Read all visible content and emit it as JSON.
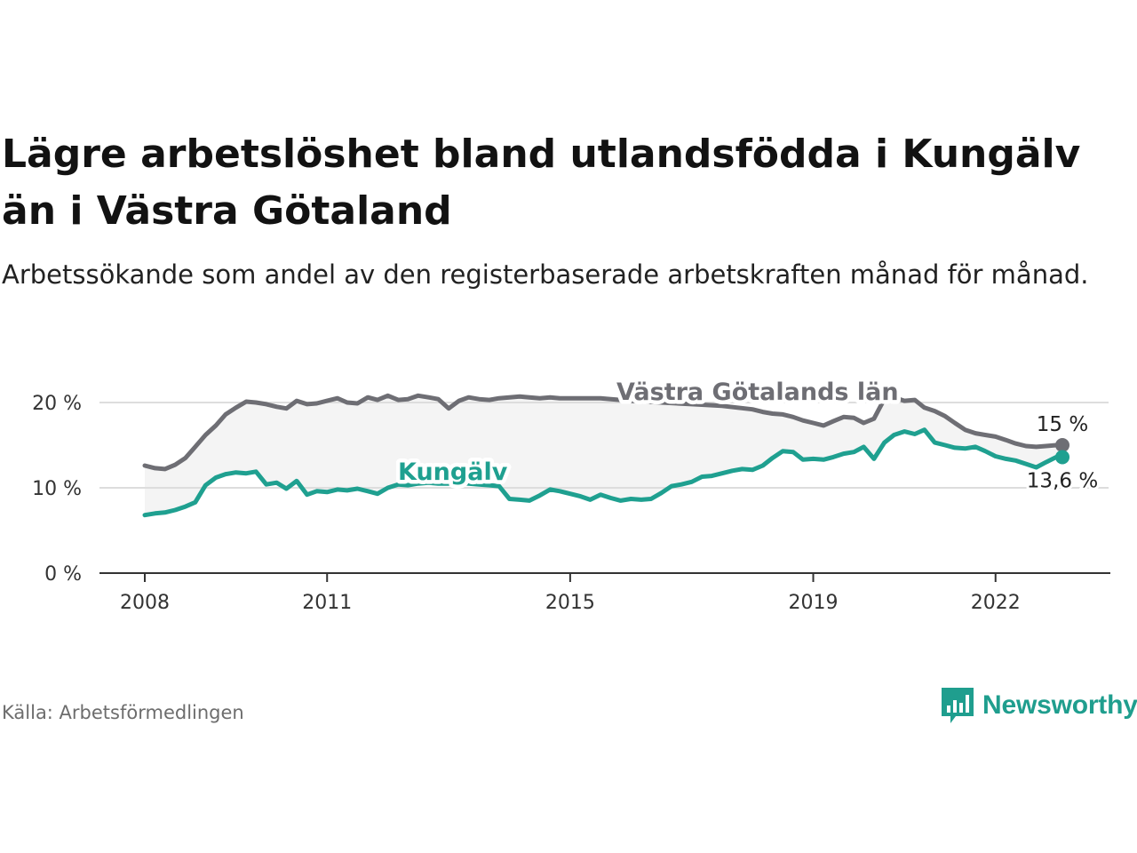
{
  "header": {
    "title": "Lägre arbetslöshet bland utlandsfödda i Kungälv än i Västra Götaland",
    "subtitle": "Arbetssökande som andel av den registerbaserade arbetskraften månad för månad."
  },
  "footer": {
    "source": "Källa: Arbetsförmedlingen",
    "brand": "Newsworthy"
  },
  "colors": {
    "regional": "#6e6e74",
    "local": "#1fa090",
    "band": "#f4f4f4"
  },
  "chart_data": {
    "type": "line",
    "title": "Lägre arbetslöshet bland utlandsfödda i Kungälv än i Västra Götaland",
    "xlabel": "",
    "ylabel": "",
    "ylim": [
      0,
      21
    ],
    "xlim": [
      2008.0,
      2023.5
    ],
    "y_ticks": [
      {
        "value": 0,
        "label": "0 %"
      },
      {
        "value": 10,
        "label": "10 %"
      },
      {
        "value": 20,
        "label": "20 %"
      }
    ],
    "x_ticks": [
      {
        "value": 2008,
        "label": "2008"
      },
      {
        "value": 2011,
        "label": "2011"
      },
      {
        "value": 2015,
        "label": "2015"
      },
      {
        "value": 2019,
        "label": "2019"
      },
      {
        "value": 2022,
        "label": "2022"
      }
    ],
    "grid": true,
    "series": [
      {
        "name": "Västra Götalands län",
        "color": "#6e6e74",
        "end_label": "15 %",
        "x": [
          2008.0,
          2008.17,
          2008.33,
          2008.5,
          2008.67,
          2008.83,
          2009.0,
          2009.17,
          2009.33,
          2009.5,
          2009.67,
          2009.83,
          2010.0,
          2010.17,
          2010.33,
          2010.5,
          2010.67,
          2010.83,
          2011.0,
          2011.17,
          2011.33,
          2011.5,
          2011.67,
          2011.83,
          2012.0,
          2012.17,
          2012.33,
          2012.5,
          2012.67,
          2012.83,
          2013.0,
          2013.17,
          2013.33,
          2013.5,
          2013.67,
          2013.83,
          2014.0,
          2014.17,
          2014.33,
          2014.5,
          2014.67,
          2014.83,
          2015.0,
          2015.17,
          2015.33,
          2015.5,
          2015.67,
          2015.83,
          2016.0,
          2016.5,
          2017.0,
          2017.5,
          2018.0,
          2018.17,
          2018.33,
          2018.5,
          2018.67,
          2018.83,
          2019.0,
          2019.17,
          2019.33,
          2019.5,
          2019.67,
          2019.83,
          2020.0,
          2020.08,
          2020.17,
          2020.33,
          2020.5,
          2020.67,
          2020.83,
          2021.0,
          2021.17,
          2021.33,
          2021.5,
          2021.67,
          2021.83,
          2022.0,
          2022.17,
          2022.33,
          2022.5,
          2022.67,
          2022.83,
          2023.0,
          2023.1
        ],
        "values": [
          12.6,
          12.3,
          12.2,
          12.7,
          13.5,
          14.8,
          16.2,
          17.3,
          18.6,
          19.4,
          20.1,
          20.0,
          19.8,
          19.5,
          19.3,
          20.2,
          19.8,
          19.9,
          20.2,
          20.5,
          20.0,
          19.9,
          20.6,
          20.3,
          20.8,
          20.3,
          20.4,
          20.8,
          20.6,
          20.4,
          19.3,
          20.2,
          20.6,
          20.4,
          20.3,
          20.5,
          20.6,
          20.7,
          20.6,
          20.5,
          20.6,
          20.5,
          20.5,
          20.5,
          20.5,
          20.5,
          20.4,
          20.3,
          20.2,
          20.0,
          19.8,
          19.6,
          19.2,
          18.9,
          18.7,
          18.6,
          18.3,
          17.9,
          17.6,
          17.3,
          17.8,
          18.3,
          18.2,
          17.6,
          18.1,
          19.2,
          20.4,
          20.6,
          20.2,
          20.3,
          19.4,
          19.0,
          18.4,
          17.6,
          16.8,
          16.4,
          16.2,
          16.0,
          15.6,
          15.2,
          14.9,
          14.8,
          14.9,
          15.0,
          15.0
        ]
      },
      {
        "name": "Kungälv",
        "color": "#1fa090",
        "end_label": "13,6 %",
        "x": [
          2008.0,
          2008.17,
          2008.33,
          2008.5,
          2008.67,
          2008.83,
          2009.0,
          2009.17,
          2009.33,
          2009.5,
          2009.67,
          2009.83,
          2010.0,
          2010.17,
          2010.33,
          2010.5,
          2010.67,
          2010.83,
          2011.0,
          2011.17,
          2011.33,
          2011.5,
          2011.67,
          2011.83,
          2012.0,
          2012.17,
          2012.33,
          2012.5,
          2012.67,
          2012.83,
          2013.0,
          2013.17,
          2013.33,
          2013.5,
          2013.67,
          2013.83,
          2014.0,
          2014.17,
          2014.33,
          2014.5,
          2014.67,
          2014.83,
          2015.0,
          2015.17,
          2015.33,
          2015.5,
          2015.67,
          2015.83,
          2016.0,
          2016.17,
          2016.33,
          2016.5,
          2016.67,
          2016.83,
          2017.0,
          2017.17,
          2017.33,
          2017.5,
          2017.67,
          2017.83,
          2018.0,
          2018.17,
          2018.33,
          2018.5,
          2018.67,
          2018.83,
          2019.0,
          2019.17,
          2019.33,
          2019.5,
          2019.67,
          2019.83,
          2020.0,
          2020.17,
          2020.33,
          2020.5,
          2020.67,
          2020.83,
          2021.0,
          2021.17,
          2021.33,
          2021.5,
          2021.67,
          2021.83,
          2022.0,
          2022.17,
          2022.33,
          2022.5,
          2022.67,
          2022.83,
          2023.0,
          2023.1
        ],
        "values": [
          6.8,
          7.0,
          7.1,
          7.4,
          7.8,
          8.3,
          10.3,
          11.2,
          11.6,
          11.8,
          11.7,
          11.9,
          10.4,
          10.6,
          9.9,
          10.8,
          9.2,
          9.6,
          9.5,
          9.8,
          9.7,
          9.9,
          9.6,
          9.3,
          10.0,
          10.4,
          10.3,
          10.5,
          10.6,
          10.5,
          10.5,
          10.6,
          10.5,
          10.4,
          10.3,
          10.2,
          8.7,
          8.6,
          8.5,
          9.1,
          9.8,
          9.6,
          9.3,
          9.0,
          8.6,
          9.2,
          8.8,
          8.5,
          8.7,
          8.6,
          8.7,
          9.4,
          10.2,
          10.4,
          10.7,
          11.3,
          11.4,
          11.7,
          12.0,
          12.2,
          12.1,
          12.6,
          13.5,
          14.3,
          14.2,
          13.3,
          13.4,
          13.3,
          13.6,
          14.0,
          14.2,
          14.8,
          13.4,
          15.3,
          16.2,
          16.6,
          16.3,
          16.8,
          15.3,
          15.0,
          14.7,
          14.6,
          14.8,
          14.3,
          13.7,
          13.4,
          13.2,
          12.8,
          12.4,
          13.0,
          13.6,
          13.6
        ]
      }
    ]
  }
}
